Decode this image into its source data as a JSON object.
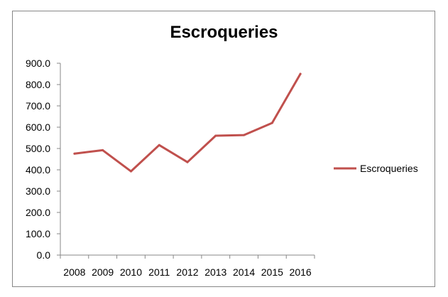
{
  "chart_data": {
    "type": "line",
    "title": "Escroqueries",
    "xlabel": "",
    "ylabel": "",
    "categories": [
      "2008",
      "2009",
      "2010",
      "2011",
      "2012",
      "2013",
      "2014",
      "2015",
      "2016"
    ],
    "series": [
      {
        "name": "Escroqueries",
        "color": "#c0504d",
        "values": [
          476,
          492,
          393,
          516,
          436,
          560,
          563,
          620,
          850
        ]
      }
    ],
    "ylim": [
      0,
      900
    ],
    "yticks": [
      "900.0",
      "800.0",
      "700.0",
      "600.0",
      "500.0",
      "400.0",
      "300.0",
      "200.0",
      "100.0",
      "0.0"
    ],
    "grid": false,
    "legend_position": "right"
  }
}
